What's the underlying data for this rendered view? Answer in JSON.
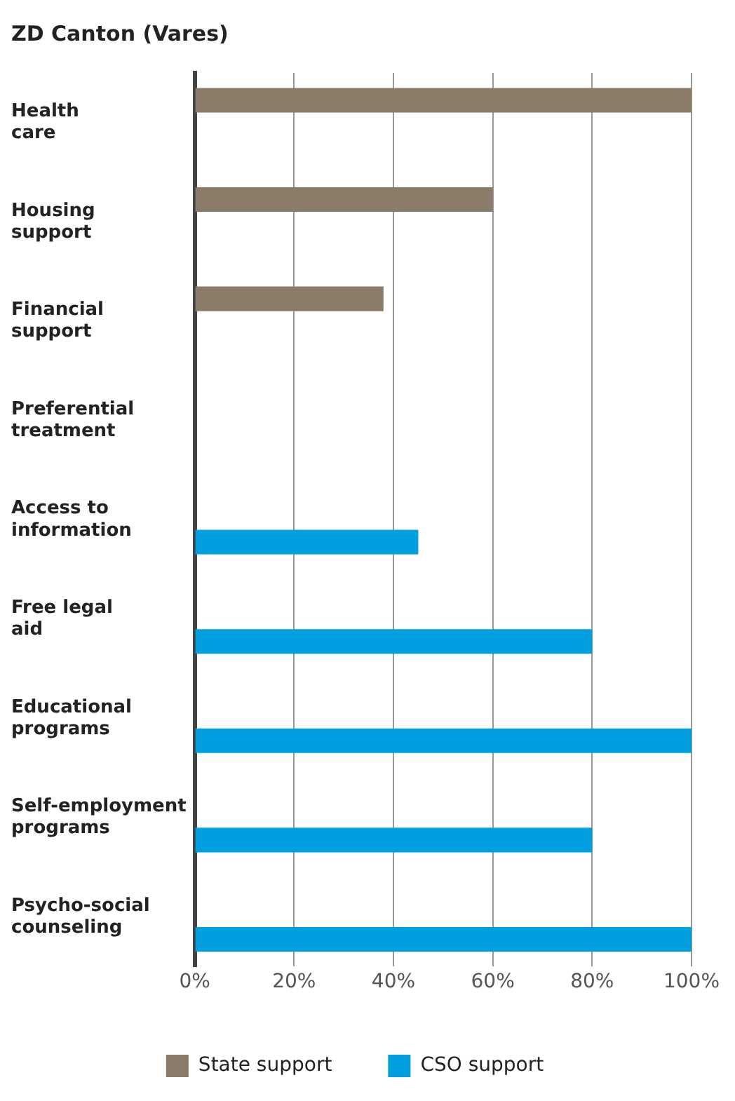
{
  "chart_data": {
    "type": "bar",
    "orientation": "horizontal",
    "title": "ZD Canton (Vares)",
    "categories": [
      "Health care",
      "Housing support",
      "Financial support",
      "Preferential treatment",
      "Access to information",
      "Free legal aid",
      "Educational programs",
      "Self-employment programs",
      "Psycho-social counseling"
    ],
    "series": [
      {
        "name": "State support",
        "color": "#8b7b69",
        "values": [
          100,
          60,
          38,
          null,
          null,
          null,
          null,
          null,
          null
        ]
      },
      {
        "name": "CSO support",
        "color": "#009fe0",
        "values": [
          null,
          null,
          null,
          null,
          45,
          80,
          100,
          80,
          100
        ]
      }
    ],
    "xlim": [
      0,
      100
    ],
    "xticks": [
      {
        "value": 0,
        "label": "0%"
      },
      {
        "value": 20,
        "label": "20%"
      },
      {
        "value": 40,
        "label": "40%"
      },
      {
        "value": 60,
        "label": "60%"
      },
      {
        "value": 80,
        "label": "80%"
      },
      {
        "value": 100,
        "label": "100%"
      }
    ],
    "grid": "x",
    "legend": "bottom"
  }
}
